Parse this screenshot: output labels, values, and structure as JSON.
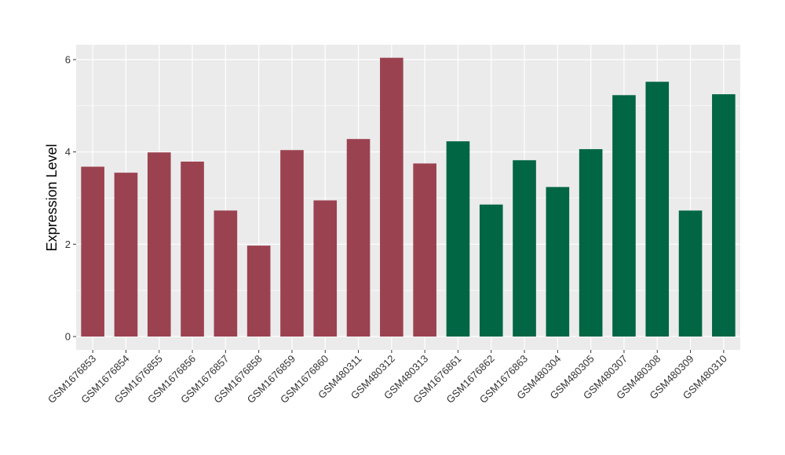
{
  "chart_data": {
    "type": "bar",
    "title": "",
    "xlabel": "",
    "ylabel": "Expression Level",
    "ylim": [
      0,
      6.3
    ],
    "yticks": [
      0,
      2,
      4,
      6
    ],
    "ytick_labels": [
      "0",
      "2",
      "4",
      "6"
    ],
    "grid": true,
    "legend": "none",
    "panel_background": "#ebebeb",
    "grid_color": "#ffffff",
    "groups": [
      {
        "color": "#9b4250"
      },
      {
        "color": "#006644"
      }
    ],
    "categories": [
      "GSM1676853",
      "GSM1676854",
      "GSM1676855",
      "GSM1676856",
      "GSM1676857",
      "GSM1676858",
      "GSM1676859",
      "GSM1676860",
      "GSM480311",
      "GSM480312",
      "GSM480313",
      "GSM1676861",
      "GSM1676862",
      "GSM1676863",
      "GSM480304",
      "GSM480305",
      "GSM480307",
      "GSM480308",
      "GSM480309",
      "GSM480310"
    ],
    "values": [
      3.68,
      3.55,
      3.99,
      3.79,
      2.73,
      1.97,
      4.04,
      2.95,
      4.28,
      6.04,
      3.75,
      4.23,
      2.86,
      3.82,
      3.24,
      4.06,
      5.23,
      5.52,
      2.73,
      5.25
    ],
    "group_index": [
      0,
      0,
      0,
      0,
      0,
      0,
      0,
      0,
      0,
      0,
      0,
      1,
      1,
      1,
      1,
      1,
      1,
      1,
      1,
      1
    ]
  }
}
